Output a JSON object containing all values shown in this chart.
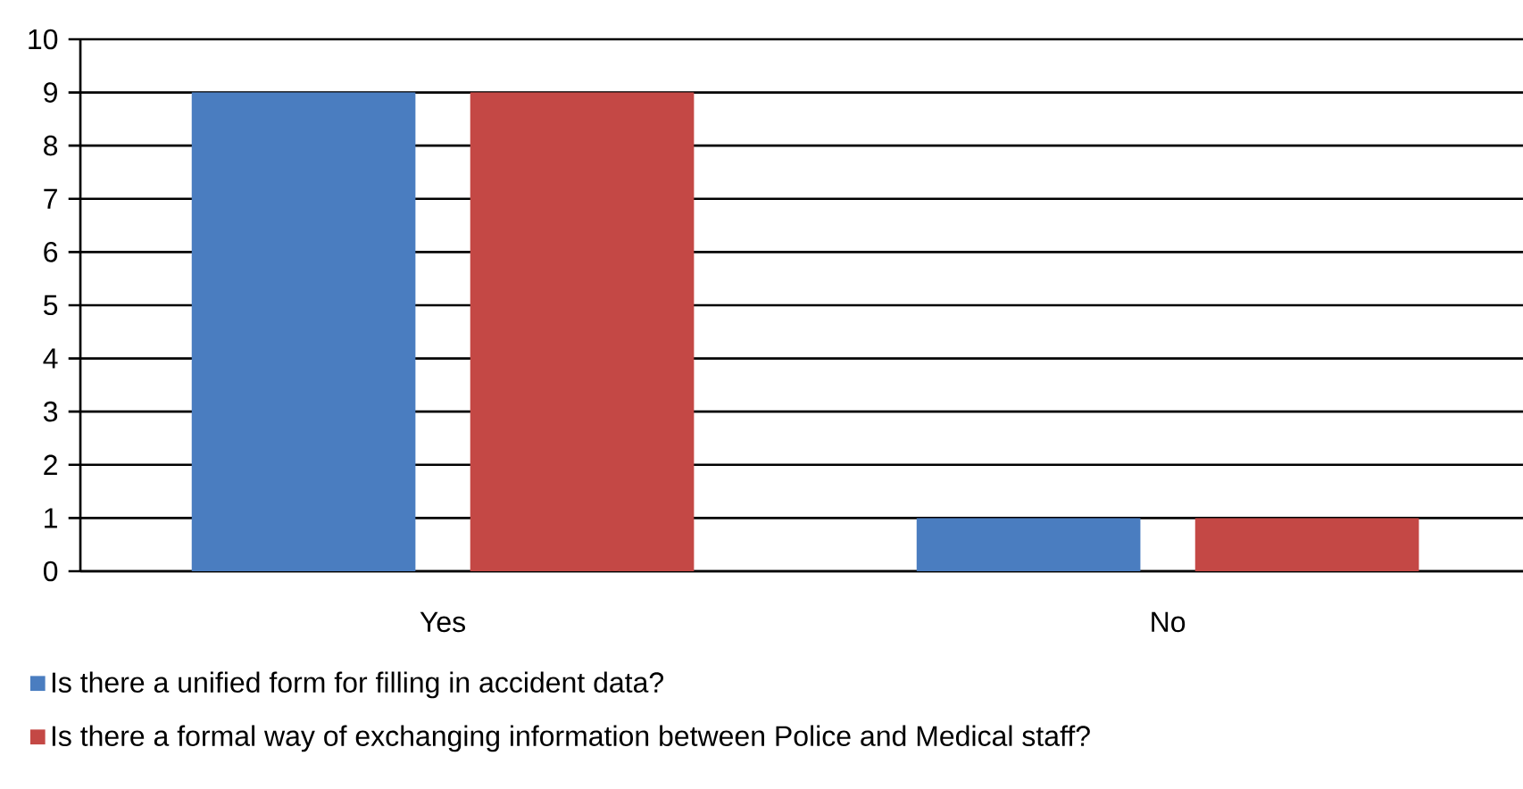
{
  "chart_data": {
    "type": "bar",
    "categories": [
      "Yes",
      "No"
    ],
    "series": [
      {
        "name": "Is there a unified form for filling in accident data?",
        "color": "#4a7dc0",
        "values": [
          9,
          1
        ]
      },
      {
        "name": "Is there a formal way of exchanging information between Police and Medical staff?",
        "color": "#c44845",
        "values": [
          9,
          1
        ]
      }
    ],
    "ylim": [
      0,
      10
    ],
    "yticks": [
      0,
      1,
      2,
      3,
      4,
      5,
      6,
      7,
      8,
      9,
      10
    ],
    "grid": "y",
    "legend": "bottom"
  }
}
